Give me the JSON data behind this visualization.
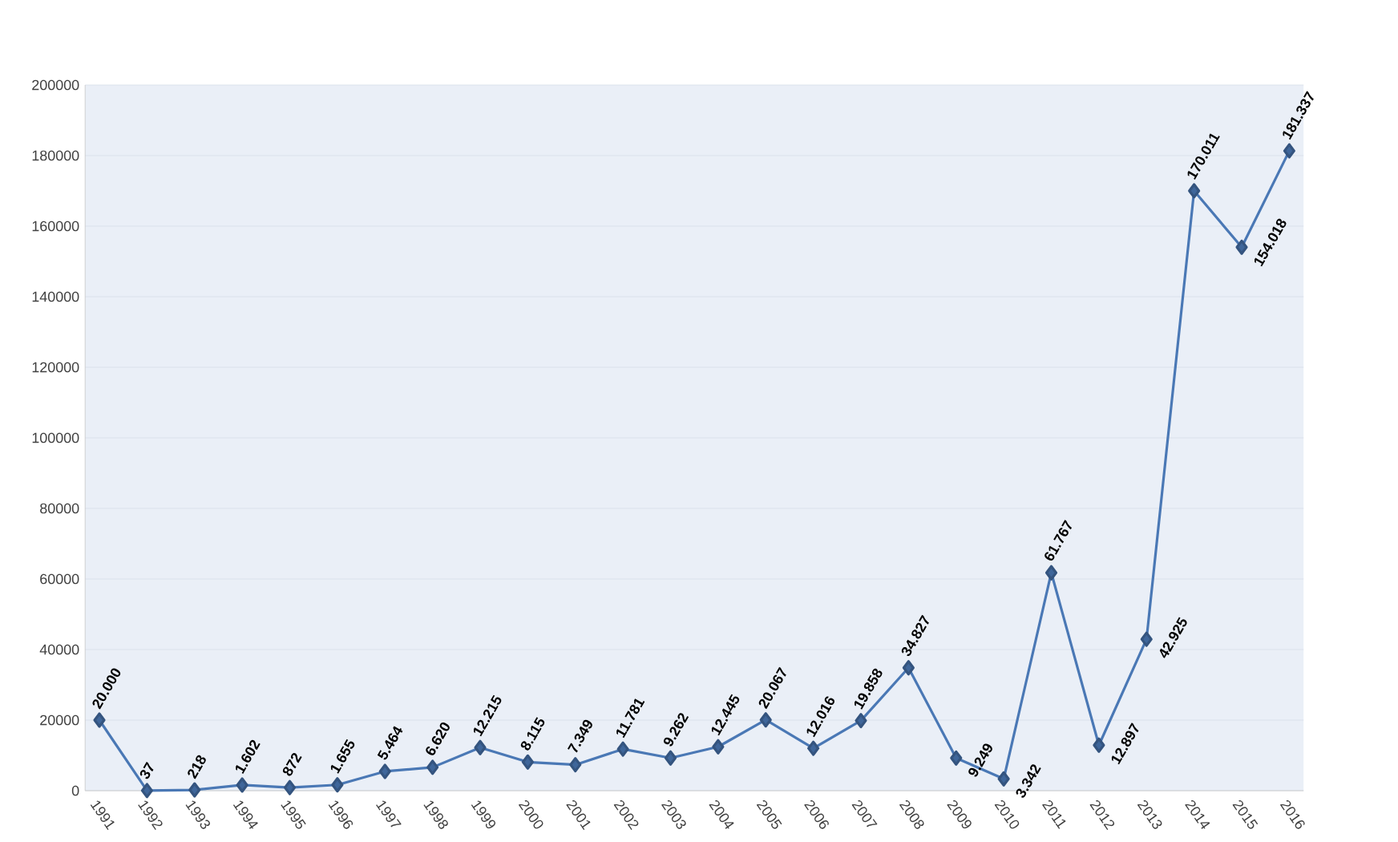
{
  "chart_data": {
    "type": "line",
    "categories": [
      "1991",
      "1992",
      "1993",
      "1994",
      "1995",
      "1996",
      "1997",
      "1998",
      "1999",
      "2000",
      "2001",
      "2002",
      "2003",
      "2004",
      "2005",
      "2006",
      "2007",
      "2008",
      "2009",
      "2010",
      "2011",
      "2012",
      "2013",
      "2014",
      "2015",
      "2016"
    ],
    "values": [
      20000,
      37,
      218,
      1602,
      872,
      1655,
      5464,
      6620,
      12215,
      8115,
      7349,
      11781,
      9262,
      12445,
      20067,
      12016,
      19858,
      34827,
      9249,
      3342,
      61767,
      12897,
      42925,
      170011,
      154018,
      181337
    ],
    "value_labels": [
      "20.000",
      "37",
      "218",
      "1.602",
      "872",
      "1.655",
      "5.464",
      "6.620",
      "12.215",
      "8.115",
      "7.349",
      "11.781",
      "9.262",
      "12.445",
      "20.067",
      "12.016",
      "19.858",
      "34.827",
      "9.249",
      "3.342",
      "61.767",
      "12.897",
      "42.925",
      "170.011",
      "154.018",
      "181.337"
    ],
    "color": "#4a78b5",
    "marker": "diamond",
    "line_style": "solid",
    "ylim": [
      0,
      200000
    ],
    "yticks": [
      0,
      20000,
      40000,
      60000,
      80000,
      100000,
      120000,
      140000,
      160000,
      180000,
      200000
    ],
    "grid": "y"
  }
}
